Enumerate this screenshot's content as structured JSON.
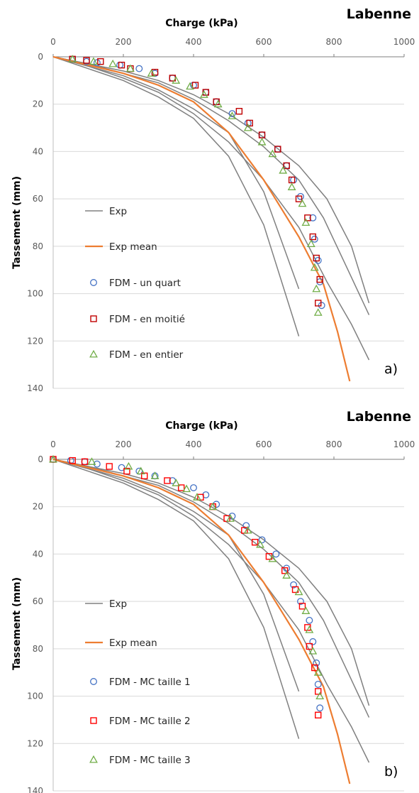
{
  "chart_data": [
    {
      "type": "line",
      "panel_label": "a)",
      "title": "Labenne",
      "xlabel": "Charge (kPa)",
      "ylabel": "Tassement (mm)",
      "xlim": [
        0,
        1000
      ],
      "ylim": [
        0,
        140
      ],
      "y_inverted": true,
      "x_axis_position": "top",
      "x_ticks": [
        "0",
        "200",
        "400",
        "600",
        "800",
        "1000"
      ],
      "y_ticks": [
        "0",
        "20",
        "40",
        "60",
        "80",
        "100",
        "120",
        "140"
      ],
      "grid": "horizontal",
      "legend_position": "left",
      "exp_series": [
        {
          "name": "Exp",
          "points": [
            [
              0,
              0
            ],
            [
              100,
              3
            ],
            [
              200,
              6
            ],
            [
              300,
              10
            ],
            [
              400,
              16
            ],
            [
              500,
              24
            ],
            [
              600,
              34
            ],
            [
              700,
              46
            ],
            [
              780,
              60
            ],
            [
              850,
              80
            ],
            [
              900,
              104
            ]
          ]
        },
        {
          "name": "Exp",
          "points": [
            [
              0,
              0
            ],
            [
              100,
              3
            ],
            [
              200,
              7
            ],
            [
              300,
              11
            ],
            [
              400,
              18
            ],
            [
              500,
              27
            ],
            [
              600,
              38
            ],
            [
              700,
              52
            ],
            [
              770,
              68
            ],
            [
              840,
              90
            ],
            [
              900,
              109
            ]
          ]
        },
        {
          "name": "Exp",
          "points": [
            [
              0,
              0
            ],
            [
              100,
              4
            ],
            [
              200,
              9
            ],
            [
              300,
              15
            ],
            [
              400,
              24
            ],
            [
              500,
              36
            ],
            [
              600,
              52
            ],
            [
              700,
              72
            ],
            [
              780,
              95
            ],
            [
              850,
              113
            ],
            [
              900,
              128
            ]
          ]
        },
        {
          "name": "Exp",
          "points": [
            [
              0,
              0
            ],
            [
              100,
              5
            ],
            [
              200,
              10
            ],
            [
              300,
              17
            ],
            [
              400,
              26
            ],
            [
              500,
              42
            ],
            [
              600,
              71
            ],
            [
              700,
              118
            ]
          ]
        },
        {
          "name": "Exp",
          "points": [
            [
              0,
              0
            ],
            [
              100,
              4
            ],
            [
              200,
              8
            ],
            [
              300,
              14
            ],
            [
              400,
              22
            ],
            [
              500,
              32
            ],
            [
              600,
              57
            ],
            [
              700,
              98
            ]
          ]
        }
      ],
      "mean_series": {
        "name": "Exp mean",
        "color": "#ed7d31",
        "points": [
          [
            0,
            0
          ],
          [
            100,
            3.5
          ],
          [
            200,
            7
          ],
          [
            300,
            12
          ],
          [
            400,
            19
          ],
          [
            500,
            32
          ],
          [
            600,
            52
          ],
          [
            700,
            76
          ],
          [
            770,
            96
          ],
          [
            810,
            116
          ],
          [
            845,
            137
          ]
        ]
      },
      "fdm_series": [
        {
          "name": "FDM - un quart",
          "marker": "circle",
          "color": "#4472c4",
          "points": [
            [
              55,
              1
            ],
            [
              95,
              2
            ],
            [
              125,
              2.5
            ],
            [
              190,
              3.5
            ],
            [
              245,
              5
            ],
            [
              290,
              7
            ],
            [
              340,
              9
            ],
            [
              400,
              12
            ],
            [
              435,
              15
            ],
            [
              465,
              19
            ],
            [
              510,
              24
            ],
            [
              555,
              28
            ],
            [
              595,
              33
            ],
            [
              640,
              39
            ],
            [
              665,
              46
            ],
            [
              685,
              52
            ],
            [
              705,
              59
            ],
            [
              740,
              68
            ],
            [
              745,
              77
            ],
            [
              755,
              86
            ],
            [
              760,
              95
            ],
            [
              765,
              105
            ]
          ]
        },
        {
          "name": "FDM - en moitié",
          "marker": "square",
          "color": "#c00000",
          "points": [
            [
              55,
              1
            ],
            [
              95,
              1.5
            ],
            [
              135,
              2
            ],
            [
              195,
              3.5
            ],
            [
              220,
              5
            ],
            [
              290,
              6.5
            ],
            [
              340,
              9
            ],
            [
              405,
              12
            ],
            [
              435,
              15
            ],
            [
              465,
              19
            ],
            [
              530,
              23
            ],
            [
              560,
              28
            ],
            [
              595,
              33
            ],
            [
              640,
              39
            ],
            [
              665,
              46
            ],
            [
              680,
              52
            ],
            [
              700,
              60
            ],
            [
              725,
              68
            ],
            [
              740,
              76
            ],
            [
              750,
              85
            ],
            [
              760,
              94
            ],
            [
              755,
              104
            ]
          ]
        },
        {
          "name": "FDM - en entier",
          "marker": "triangle",
          "color": "#70ad47",
          "points": [
            [
              55,
              1
            ],
            [
              115,
              2
            ],
            [
              170,
              3
            ],
            [
              220,
              5
            ],
            [
              280,
              7
            ],
            [
              350,
              10
            ],
            [
              390,
              12.5
            ],
            [
              430,
              16
            ],
            [
              470,
              20
            ],
            [
              510,
              25
            ],
            [
              555,
              30
            ],
            [
              595,
              36
            ],
            [
              625,
              41
            ],
            [
              655,
              48
            ],
            [
              680,
              55
            ],
            [
              710,
              62
            ],
            [
              720,
              70
            ],
            [
              735,
              79
            ],
            [
              745,
              89
            ],
            [
              750,
              98
            ],
            [
              755,
              108
            ]
          ]
        }
      ]
    },
    {
      "type": "line",
      "panel_label": "b)",
      "title": "Labenne",
      "xlabel": "Charge (kPa)",
      "ylabel": "Tassement (mm)",
      "xlim": [
        0,
        1000
      ],
      "ylim": [
        0,
        140
      ],
      "y_inverted": true,
      "x_axis_position": "top",
      "x_ticks": [
        "0",
        "200",
        "400",
        "600",
        "800",
        "1000"
      ],
      "y_ticks": [
        "0",
        "20",
        "40",
        "60",
        "80",
        "100",
        "120",
        "140"
      ],
      "grid": "horizontal",
      "legend_position": "left",
      "exp_series": [
        {
          "name": "Exp",
          "points": [
            [
              0,
              0
            ],
            [
              100,
              3
            ],
            [
              200,
              6
            ],
            [
              300,
              10
            ],
            [
              400,
              16
            ],
            [
              500,
              24
            ],
            [
              600,
              34
            ],
            [
              700,
              46
            ],
            [
              780,
              60
            ],
            [
              850,
              80
            ],
            [
              900,
              104
            ]
          ]
        },
        {
          "name": "Exp",
          "points": [
            [
              0,
              0
            ],
            [
              100,
              3
            ],
            [
              200,
              7
            ],
            [
              300,
              11
            ],
            [
              400,
              18
            ],
            [
              500,
              27
            ],
            [
              600,
              38
            ],
            [
              700,
              52
            ],
            [
              770,
              68
            ],
            [
              840,
              90
            ],
            [
              900,
              109
            ]
          ]
        },
        {
          "name": "Exp",
          "points": [
            [
              0,
              0
            ],
            [
              100,
              4
            ],
            [
              200,
              9
            ],
            [
              300,
              15
            ],
            [
              400,
              24
            ],
            [
              500,
              36
            ],
            [
              600,
              52
            ],
            [
              700,
              72
            ],
            [
              780,
              95
            ],
            [
              850,
              113
            ],
            [
              900,
              128
            ]
          ]
        },
        {
          "name": "Exp",
          "points": [
            [
              0,
              0
            ],
            [
              100,
              5
            ],
            [
              200,
              10
            ],
            [
              300,
              17
            ],
            [
              400,
              26
            ],
            [
              500,
              42
            ],
            [
              600,
              71
            ],
            [
              700,
              118
            ]
          ]
        },
        {
          "name": "Exp",
          "points": [
            [
              0,
              0
            ],
            [
              100,
              4
            ],
            [
              200,
              8
            ],
            [
              300,
              14
            ],
            [
              400,
              22
            ],
            [
              500,
              32
            ],
            [
              600,
              57
            ],
            [
              700,
              98
            ]
          ]
        }
      ],
      "mean_series": {
        "name": "Exp mean",
        "color": "#ed7d31",
        "points": [
          [
            0,
            0
          ],
          [
            100,
            3.5
          ],
          [
            200,
            7
          ],
          [
            300,
            12
          ],
          [
            400,
            19
          ],
          [
            500,
            32
          ],
          [
            600,
            52
          ],
          [
            700,
            76
          ],
          [
            770,
            96
          ],
          [
            810,
            116
          ],
          [
            845,
            137
          ]
        ]
      },
      "fdm_series": [
        {
          "name": "FDM - MC taille 1",
          "marker": "circle",
          "color": "#4472c4",
          "points": [
            [
              0,
              0
            ],
            [
              50,
              0.5
            ],
            [
              90,
              1
            ],
            [
              125,
              2
            ],
            [
              195,
              3.5
            ],
            [
              245,
              5
            ],
            [
              290,
              7
            ],
            [
              340,
              9
            ],
            [
              400,
              12
            ],
            [
              435,
              15
            ],
            [
              465,
              19
            ],
            [
              510,
              24
            ],
            [
              550,
              28
            ],
            [
              595,
              34
            ],
            [
              635,
              40
            ],
            [
              665,
              46
            ],
            [
              685,
              53
            ],
            [
              705,
              60
            ],
            [
              730,
              68
            ],
            [
              740,
              77
            ],
            [
              750,
              86
            ],
            [
              755,
              95
            ],
            [
              760,
              105
            ]
          ]
        },
        {
          "name": "FDM - MC taille 2",
          "marker": "square",
          "color": "#ff0000",
          "points": [
            [
              0,
              0
            ],
            [
              55,
              0.5
            ],
            [
              90,
              1
            ],
            [
              160,
              3
            ],
            [
              210,
              5
            ],
            [
              260,
              7
            ],
            [
              325,
              9
            ],
            [
              365,
              12
            ],
            [
              420,
              16
            ],
            [
              455,
              20
            ],
            [
              495,
              25
            ],
            [
              545,
              30
            ],
            [
              575,
              35
            ],
            [
              615,
              41
            ],
            [
              660,
              47
            ],
            [
              690,
              55
            ],
            [
              710,
              62
            ],
            [
              725,
              71
            ],
            [
              730,
              79
            ],
            [
              745,
              88
            ],
            [
              755,
              98
            ],
            [
              755,
              108
            ]
          ]
        },
        {
          "name": "FDM - MC taille 3",
          "marker": "triangle",
          "color": "#70ad47",
          "points": [
            [
              0,
              0
            ],
            [
              110,
              1
            ],
            [
              215,
              3
            ],
            [
              250,
              5
            ],
            [
              290,
              7
            ],
            [
              350,
              10
            ],
            [
              380,
              12.5
            ],
            [
              410,
              16
            ],
            [
              455,
              20
            ],
            [
              505,
              25
            ],
            [
              555,
              30
            ],
            [
              590,
              36
            ],
            [
              625,
              42
            ],
            [
              665,
              49
            ],
            [
              700,
              56
            ],
            [
              720,
              64
            ],
            [
              730,
              72
            ],
            [
              740,
              81
            ],
            [
              755,
              90
            ],
            [
              760,
              100
            ]
          ]
        }
      ]
    }
  ]
}
